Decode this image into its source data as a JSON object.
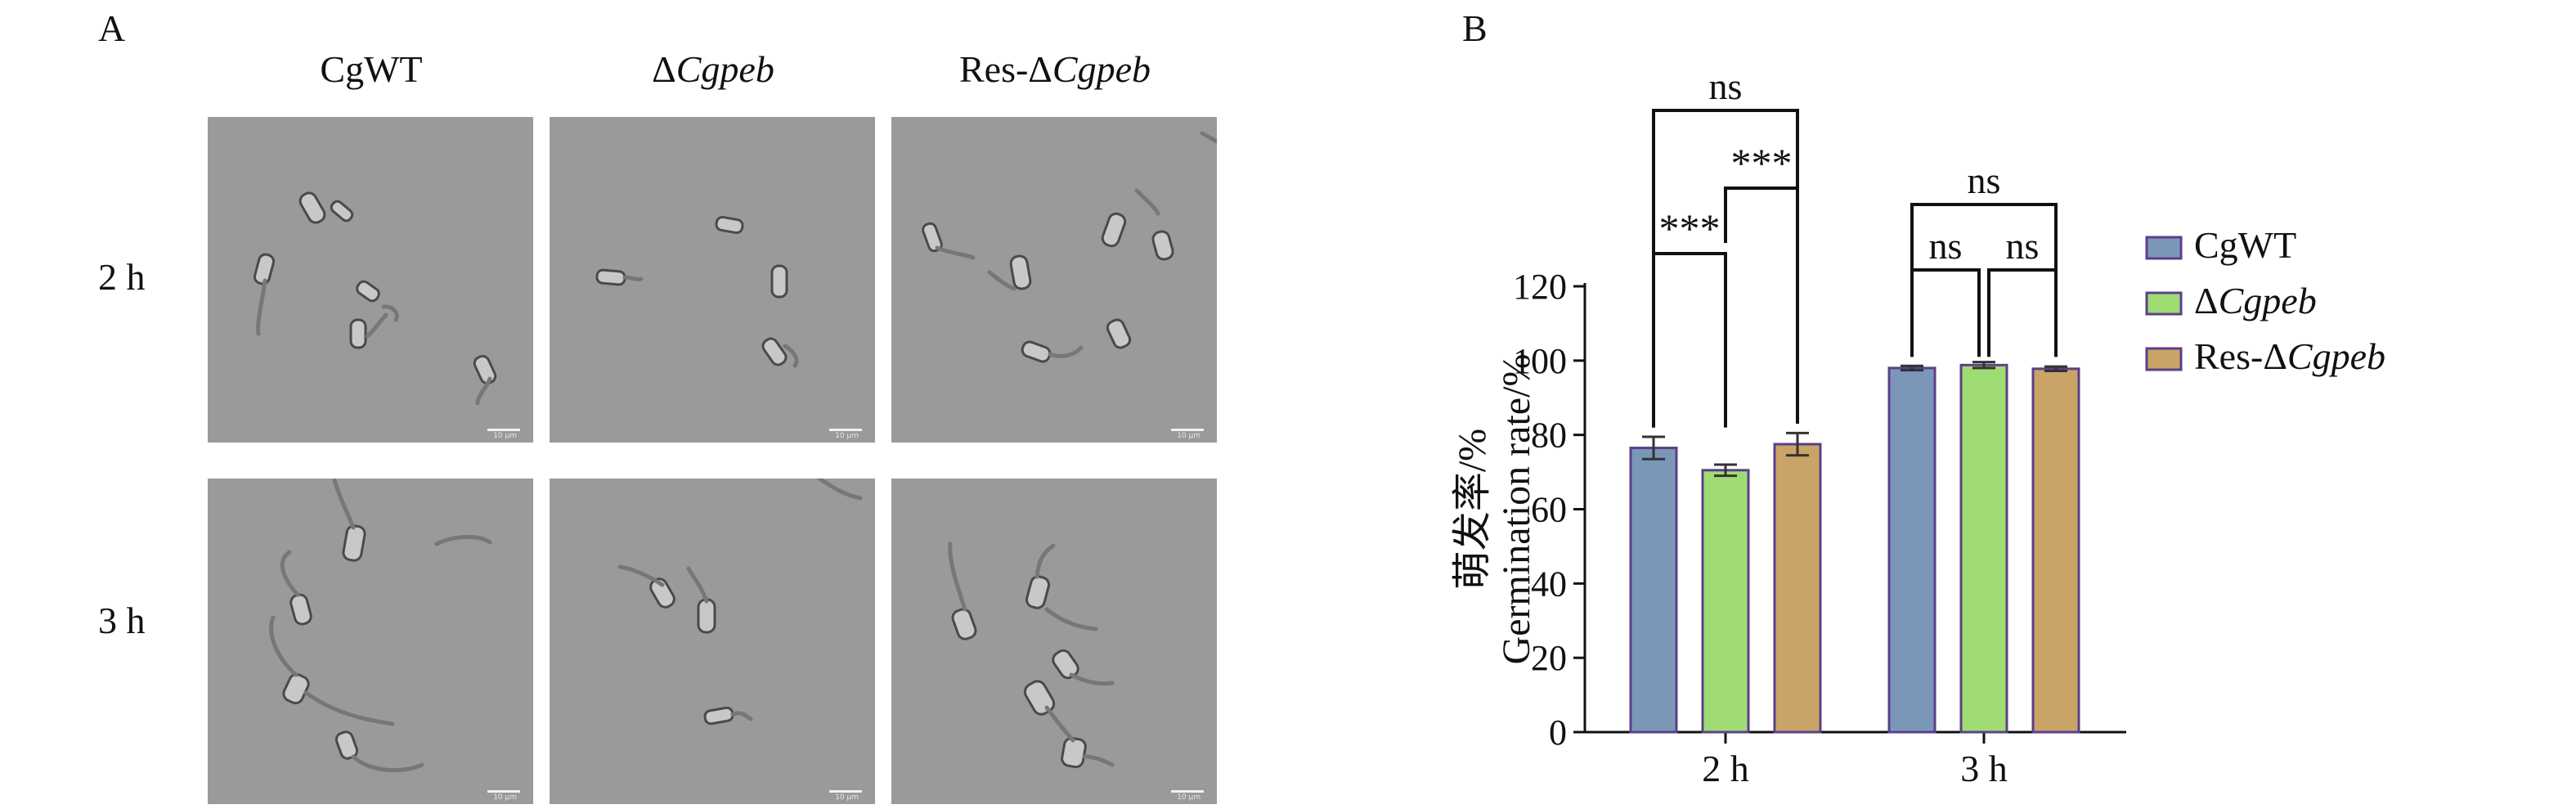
{
  "panel_a": {
    "letter": "A",
    "columns": [
      {
        "prefix": "CgWT",
        "italic": ""
      },
      {
        "prefix": "Δ",
        "italic": "Cgpeb"
      },
      {
        "prefix": "Res-Δ",
        "italic": "Cgpeb"
      }
    ],
    "rows": [
      "2 h",
      "3 h"
    ],
    "scale_bar_label": "10 μm"
  },
  "panel_b": {
    "letter": "B"
  },
  "chart_data": {
    "type": "bar",
    "categories": [
      "2 h",
      "3 h"
    ],
    "series": [
      {
        "name": "CgWT",
        "name_prefix": "CgWT",
        "name_italic": "",
        "values": [
          76.5,
          98
        ],
        "errors": [
          3,
          0.6
        ],
        "color": "#7b97b8"
      },
      {
        "name": "ΔCgpeb",
        "name_prefix": "Δ",
        "name_italic": "Cgpeb",
        "values": [
          70.5,
          98.8
        ],
        "errors": [
          1.5,
          0.8
        ],
        "color": "#9fdc74"
      },
      {
        "name": "Res-ΔCgpeb",
        "name_prefix": "Res-Δ",
        "name_italic": "Cgpeb",
        "values": [
          77.5,
          97.8
        ],
        "errors": [
          3,
          0.6
        ],
        "color": "#c9a466"
      }
    ],
    "ylabel_cn": "萌发率/%",
    "ylabel": "Germination rate/%",
    "ylim": [
      0,
      120
    ],
    "yticks": [
      0,
      20,
      40,
      60,
      80,
      100,
      120
    ],
    "legend_position": "right",
    "significance": [
      {
        "group": "2 h",
        "from": 0,
        "to": 1,
        "label": "***"
      },
      {
        "group": "2 h",
        "from": 1,
        "to": 2,
        "label": "***"
      },
      {
        "group": "2 h",
        "from": 0,
        "to": 2,
        "label": "ns"
      },
      {
        "group": "3 h",
        "from": 0,
        "to": 1,
        "label": "ns"
      },
      {
        "group": "3 h",
        "from": 1,
        "to": 2,
        "label": "ns"
      },
      {
        "group": "3 h",
        "from": 0,
        "to": 2,
        "label": "ns"
      }
    ]
  }
}
